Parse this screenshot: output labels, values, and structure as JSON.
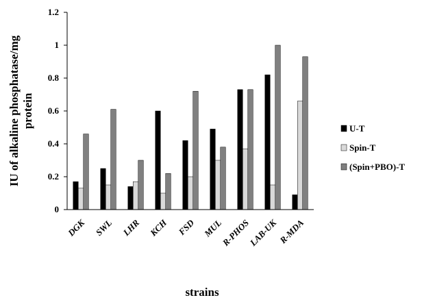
{
  "chart_data": {
    "type": "bar",
    "title": "",
    "xlabel": "strains",
    "ylabel_line1": "IU of alkaline phosphatase/mg",
    "ylabel_line2": "protein",
    "ylim": [
      0,
      1.2
    ],
    "yticks": [
      "0",
      "0.2",
      "0.4",
      "0.6",
      "0.8",
      "1",
      "1.2"
    ],
    "grid": false,
    "legend_position": "right",
    "categories": [
      "DGK",
      "SWL",
      "LHR",
      "KCH",
      "FSD",
      "MUL",
      "R-PHOS",
      "LAB-UK",
      "R-MDA"
    ],
    "series": [
      {
        "name": "U-T",
        "color": "#000000",
        "values": [
          0.17,
          0.25,
          0.14,
          0.6,
          0.42,
          0.49,
          0.73,
          0.82,
          0.09
        ]
      },
      {
        "name": "Spin-T",
        "color": "#d9d9d9",
        "values": [
          0.13,
          0.15,
          0.17,
          0.1,
          0.2,
          0.3,
          0.37,
          0.15,
          0.66
        ]
      },
      {
        "name": "(Spin+PBO)-T",
        "color": "#808080",
        "values": [
          0.46,
          0.61,
          0.3,
          0.22,
          0.72,
          0.38,
          0.73,
          1.0,
          0.93
        ]
      }
    ]
  }
}
